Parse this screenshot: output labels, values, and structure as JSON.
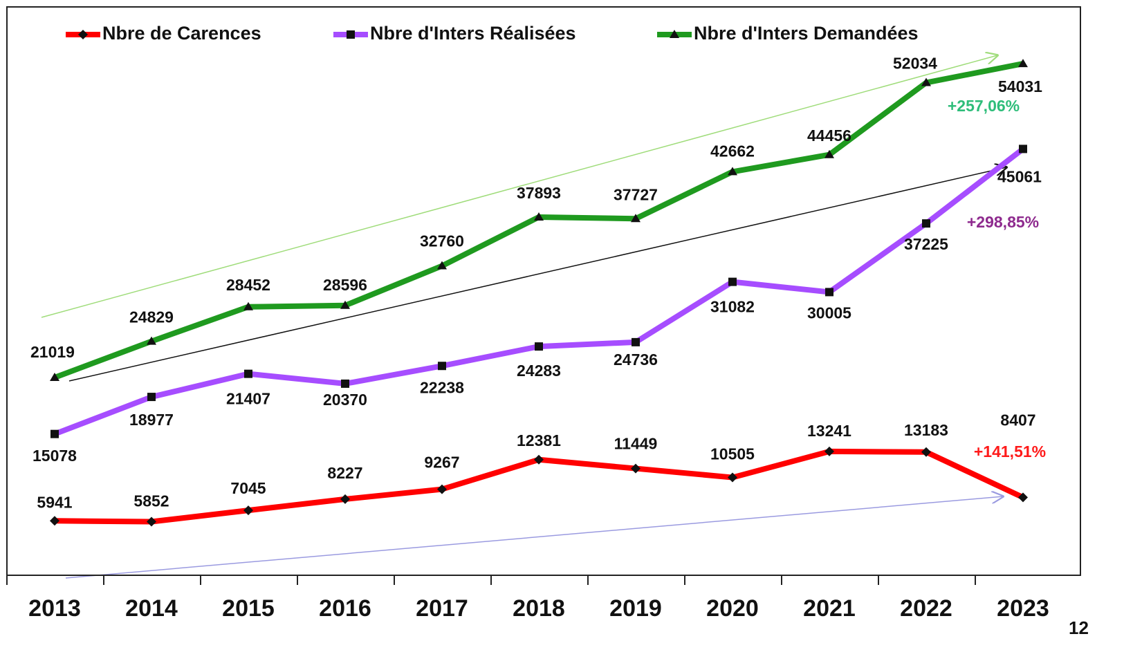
{
  "chart_data": {
    "type": "line",
    "categories": [
      "2013",
      "2014",
      "2015",
      "2016",
      "2017",
      "2018",
      "2019",
      "2020",
      "2021",
      "2022",
      "2023"
    ],
    "series": [
      {
        "name": "Nbre de Carences",
        "color": "#ff0000",
        "marker": "diamond",
        "values": [
          5941,
          5852,
          7045,
          8227,
          9267,
          12381,
          11449,
          10505,
          13241,
          13183,
          8407
        ]
      },
      {
        "name": "Nbre d'Inters Réalisées",
        "color": "#a64dff",
        "marker": "square",
        "values": [
          15078,
          18977,
          21407,
          20370,
          22238,
          24283,
          24736,
          31082,
          30005,
          37225,
          45061
        ]
      },
      {
        "name": "Nbre d'Inters Demandées",
        "color": "#1f9a1f",
        "marker": "triangle",
        "values": [
          21019,
          24829,
          28452,
          28596,
          32760,
          37893,
          37727,
          42662,
          44456,
          52034,
          54031
        ]
      }
    ],
    "ylim": [
      0,
      60000
    ],
    "annotations": [
      {
        "text": "+141,51%",
        "color": "#ff1a1a"
      },
      {
        "text": "+298,85%",
        "color": "#8e2a8e"
      },
      {
        "text": "+257,06%",
        "color": "#2ebd7a"
      }
    ],
    "page_number": "12",
    "legend": "top"
  }
}
